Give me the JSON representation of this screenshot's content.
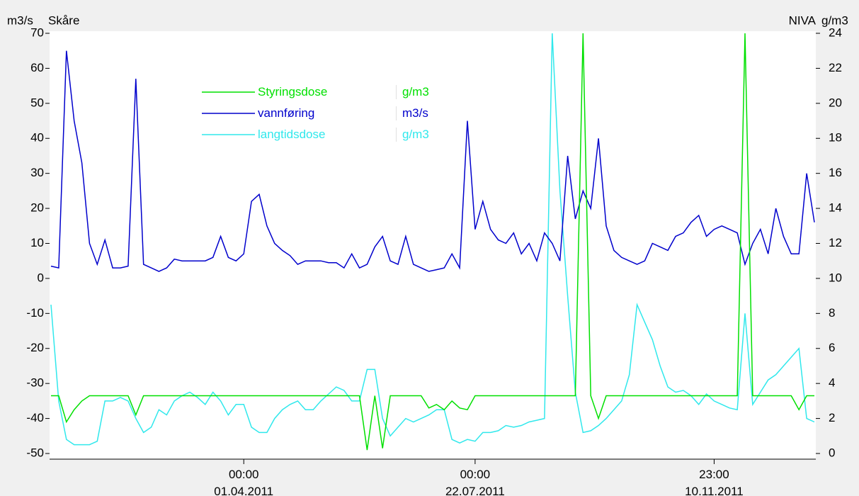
{
  "chart_data": {
    "type": "line",
    "y_unit": "m3/s",
    "y_title": "Skåre",
    "y2_title": "NIVA",
    "y2_unit": "g/m3",
    "categories": [
      null,
      null,
      null,
      null,
      null,
      null,
      null,
      null,
      null,
      null,
      null,
      null,
      null,
      null,
      null,
      null,
      null,
      null,
      null,
      null,
      null,
      null,
      null,
      null,
      null,
      "00:00 01.04.2011",
      null,
      null,
      null,
      null,
      null,
      null,
      null,
      null,
      null,
      null,
      null,
      null,
      null,
      null,
      null,
      null,
      null,
      null,
      null,
      null,
      null,
      null,
      null,
      null,
      null,
      null,
      null,
      null,
      null,
      "00:00 22.07.2011",
      null,
      null,
      null,
      null,
      null,
      null,
      null,
      null,
      null,
      null,
      null,
      null,
      null,
      null,
      null,
      null,
      null,
      null,
      null,
      null,
      null,
      null,
      null,
      null,
      null,
      null,
      null,
      null,
      null,
      null,
      "23:00 10.11.2011",
      null,
      null,
      null,
      null,
      null,
      null,
      null,
      null,
      null,
      null,
      null,
      null,
      null
    ],
    "ylim": [
      -50,
      70
    ],
    "yticks": [
      -50,
      -40,
      -30,
      -20,
      -10,
      0,
      10,
      20,
      30,
      40,
      50,
      60,
      70
    ],
    "y2lim": [
      0,
      24
    ],
    "y2ticks": [
      0,
      2,
      4,
      6,
      8,
      10,
      12,
      14,
      16,
      18,
      20,
      22,
      24
    ],
    "series": [
      {
        "name": "Styringsdose",
        "unit": "g/m3",
        "color": "#00e000",
        "axis": "y2",
        "values": [
          3.3,
          3.3,
          1.8,
          2.5,
          3.0,
          3.3,
          3.3,
          3.3,
          3.3,
          3.3,
          3.3,
          2.2,
          3.3,
          3.3,
          3.3,
          3.3,
          3.3,
          3.3,
          3.3,
          3.3,
          3.3,
          3.3,
          3.3,
          3.3,
          3.3,
          3.3,
          3.3,
          3.3,
          3.3,
          3.3,
          3.3,
          3.3,
          3.3,
          3.3,
          3.3,
          3.3,
          3.3,
          3.3,
          3.3,
          3.3,
          3.3,
          0.2,
          3.3,
          0.3,
          3.3,
          3.3,
          3.3,
          3.3,
          3.3,
          2.6,
          2.8,
          2.5,
          3.0,
          2.6,
          2.5,
          3.3,
          3.3,
          3.3,
          3.3,
          3.3,
          3.3,
          3.3,
          3.3,
          3.3,
          3.3,
          3.3,
          3.3,
          3.3,
          3.3,
          24,
          3.3,
          2.0,
          3.3,
          3.3,
          3.3,
          3.3,
          3.3,
          3.3,
          3.3,
          3.3,
          3.3,
          3.3,
          3.3,
          3.3,
          3.3,
          3.3,
          3.3,
          3.3,
          3.3,
          3.3,
          24,
          3.3,
          3.3,
          3.3,
          3.3,
          3.3,
          3.3,
          2.5,
          3.3,
          3.3
        ]
      },
      {
        "name": "vannføring",
        "unit": "m3/s",
        "color": "#0000cc",
        "values": [
          3.5,
          3,
          65,
          45,
          33,
          10,
          4,
          11,
          3,
          3,
          3.5,
          57,
          4,
          3,
          2,
          3,
          5.5,
          5,
          5,
          5,
          5,
          6,
          12,
          6,
          5,
          7,
          22,
          24,
          15,
          10,
          8,
          6.5,
          4,
          5,
          5,
          5,
          4.5,
          4.5,
          3,
          7,
          3,
          4,
          9,
          12,
          5,
          4,
          12,
          4,
          3,
          2,
          2.5,
          3,
          7,
          3,
          45,
          14,
          22,
          14,
          11,
          10,
          13,
          7,
          10,
          5,
          13,
          10,
          5,
          35,
          17,
          25,
          20,
          40,
          15,
          8,
          6,
          5,
          4,
          5,
          10,
          9,
          8,
          12,
          13,
          16,
          18,
          12,
          14,
          15,
          14,
          13,
          4,
          10,
          14,
          7,
          20,
          12,
          7,
          7,
          30,
          16
        ]
      },
      {
        "name": "langtidsdose",
        "unit": "g/m3",
        "color": "#30e8ec",
        "axis": "y2",
        "values": [
          8.5,
          3,
          0.8,
          0.5,
          0.5,
          0.5,
          0.7,
          3,
          3,
          3.2,
          3,
          2,
          1.2,
          1.5,
          2.5,
          2.2,
          3,
          3.3,
          3.5,
          3.2,
          2.8,
          3.5,
          3,
          2.2,
          2.8,
          2.8,
          1.5,
          1.2,
          1.2,
          2,
          2.5,
          2.8,
          3,
          2.5,
          2.5,
          3,
          3.4,
          3.8,
          3.6,
          3,
          3,
          4.8,
          4.8,
          2,
          1,
          1.5,
          2,
          1.8,
          2,
          2.2,
          2.5,
          2.5,
          0.8,
          0.6,
          0.8,
          0.7,
          1.2,
          1.2,
          1.3,
          1.6,
          1.5,
          1.6,
          1.8,
          1.9,
          2,
          24,
          15,
          9,
          3.5,
          1.2,
          1.3,
          1.6,
          2,
          2.5,
          3,
          4.5,
          8.5,
          7.5,
          6.5,
          5,
          3.8,
          3.5,
          3.6,
          3.3,
          2.8,
          3.4,
          3,
          2.8,
          2.6,
          2.5,
          8,
          2.8,
          3.5,
          4.2,
          4.5,
          5,
          5.5,
          6,
          2,
          1.8
        ]
      }
    ]
  }
}
